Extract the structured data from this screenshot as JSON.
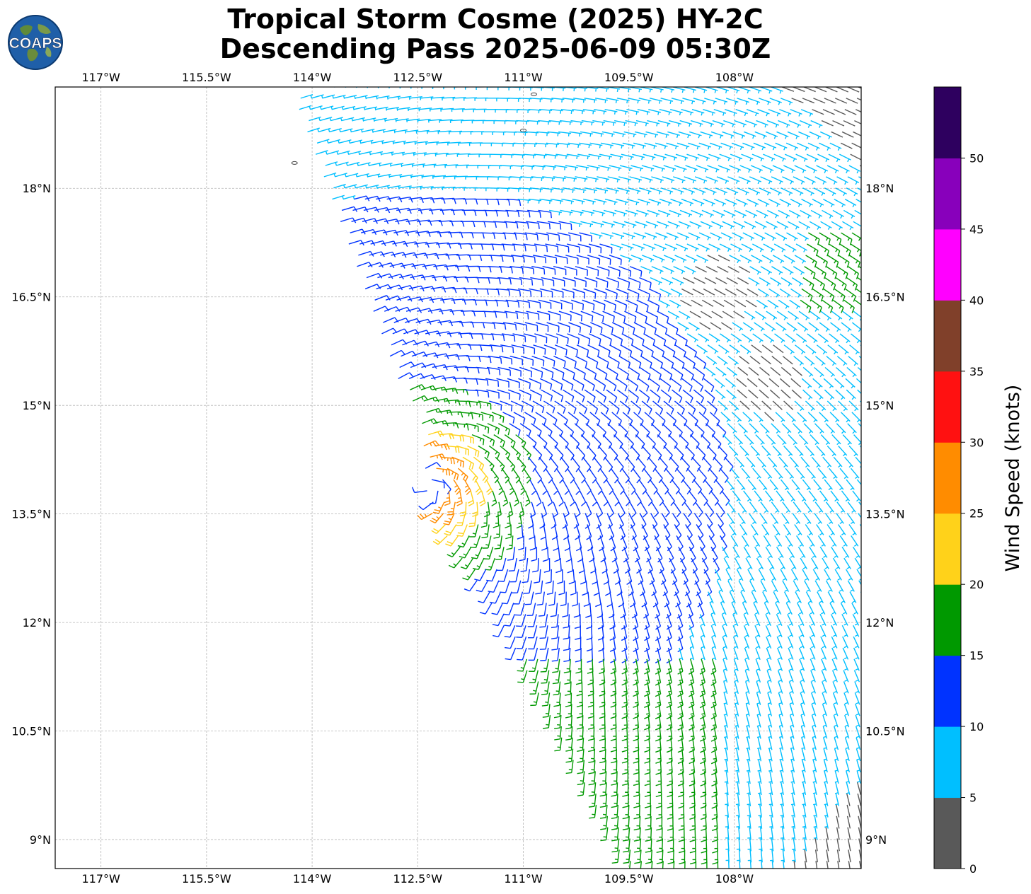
{
  "title": {
    "line1": "Tropical Storm Cosme (2025) HY-2C",
    "line2": "Descending Pass 2025-06-09 05:30Z"
  },
  "logo": {
    "text": "COAPS"
  },
  "map": {
    "lon_range": [
      -117.65,
      -106.2
    ],
    "lat_range": [
      8.6,
      19.4
    ],
    "lon_ticks": [
      {
        "value": -117,
        "label": "117°W"
      },
      {
        "value": -115.5,
        "label": "115.5°W"
      },
      {
        "value": -114,
        "label": "114°W"
      },
      {
        "value": -112.5,
        "label": "112.5°W"
      },
      {
        "value": -111,
        "label": "111°W"
      },
      {
        "value": -109.5,
        "label": "109.5°W"
      },
      {
        "value": -108,
        "label": "108°W"
      }
    ],
    "lat_ticks": [
      {
        "value": 18,
        "label": "18°N"
      },
      {
        "value": 16.5,
        "label": "16.5°N"
      },
      {
        "value": 15,
        "label": "15°N"
      },
      {
        "value": 13.5,
        "label": "13.5°N"
      },
      {
        "value": 12,
        "label": "12°N"
      },
      {
        "value": 10.5,
        "label": "10.5°N"
      },
      {
        "value": 9,
        "label": "9°N"
      }
    ],
    "grid": true,
    "storm_center": {
      "lon": -112.35,
      "lat": 13.9
    },
    "swath_west_edge": [
      {
        "lon": -114.3,
        "lat": 19.4
      },
      {
        "lon": -112.75,
        "lat": 15.3
      },
      {
        "lon": -112.45,
        "lat": 14.9
      },
      {
        "lon": -112.35,
        "lat": 13.6
      },
      {
        "lon": -111.4,
        "lat": 12.2
      },
      {
        "lon": -109.5,
        "lat": 8.6
      }
    ],
    "islands": [
      {
        "lon": -114.25,
        "lat": 18.35
      },
      {
        "lon": -111.0,
        "lat": 18.8
      },
      {
        "lon": -110.85,
        "lat": 19.3
      }
    ]
  },
  "colorbar": {
    "label": "Wind Speed (knots)",
    "bins": [
      {
        "min": 0,
        "max": 5,
        "color": "#595959"
      },
      {
        "min": 5,
        "max": 10,
        "color": "#00bfff"
      },
      {
        "min": 10,
        "max": 15,
        "color": "#0033ff"
      },
      {
        "min": 15,
        "max": 20,
        "color": "#009900"
      },
      {
        "min": 20,
        "max": 25,
        "color": "#ffd21a"
      },
      {
        "min": 25,
        "max": 30,
        "color": "#ff8c00"
      },
      {
        "min": 30,
        "max": 35,
        "color": "#ff1111"
      },
      {
        "min": 35,
        "max": 40,
        "color": "#80402a"
      },
      {
        "min": 40,
        "max": 45,
        "color": "#ff00ff"
      },
      {
        "min": 45,
        "max": 50,
        "color": "#8800bb"
      },
      {
        "min": 50,
        "max": 55,
        "color": "#2e005f"
      }
    ],
    "tick_labels": [
      "0",
      "5",
      "10",
      "15",
      "20",
      "25",
      "30",
      "35",
      "40",
      "45",
      "50"
    ]
  }
}
